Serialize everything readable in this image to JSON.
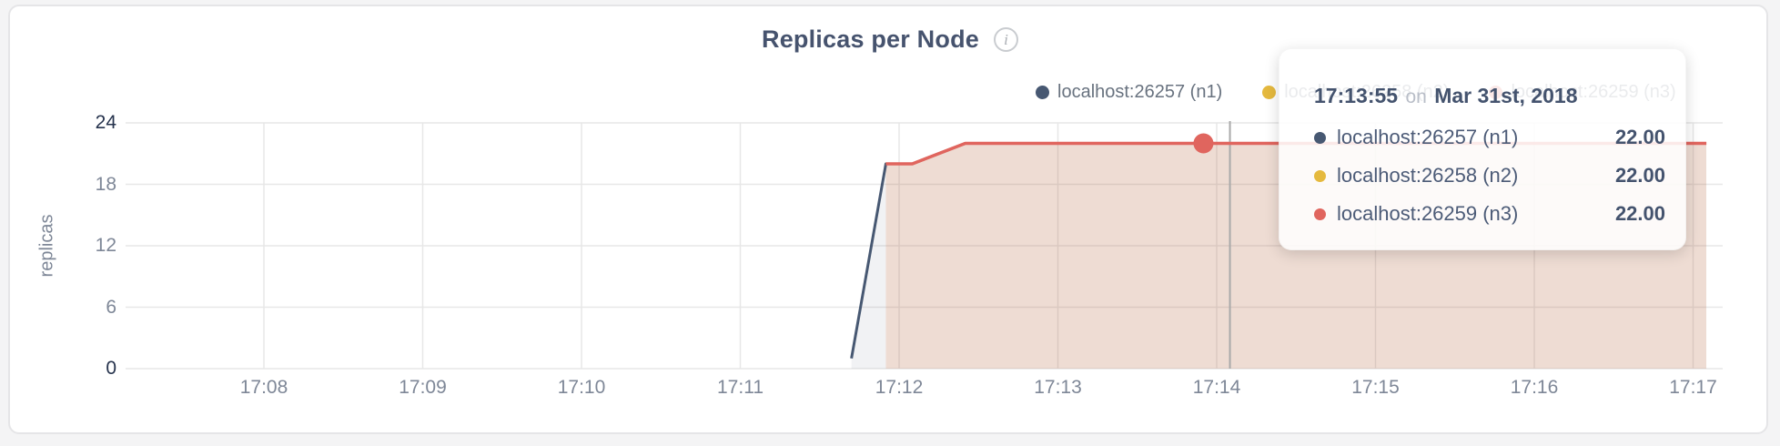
{
  "page": {
    "title": "Replicas per Node",
    "info_icon": "i"
  },
  "colors": {
    "page_background": "#f4f4f5",
    "card_background": "#ffffff",
    "card_border": "#e5e5e7",
    "title_text": "#46536e",
    "axis_tick": "#7e8797",
    "axis_tick_strong": "#26334d",
    "gridline": "#e7e7e7",
    "crosshair": "#a9a9a9",
    "legend_text": "#68727f",
    "tooltip_text": "#4c5b77",
    "tooltip_on_word": "#b9bec8",
    "series_n1": "#475872",
    "series_n2": "#e5b93e",
    "series_n3": "#e0655e"
  },
  "chart_data": {
    "type": "area",
    "title": "Replicas per Node",
    "xlabel": "",
    "ylabel": "replicas",
    "x_ticks": [
      "17:08",
      "17:09",
      "17:10",
      "17:11",
      "17:12",
      "17:13",
      "17:14",
      "17:15",
      "17:16",
      "17:17"
    ],
    "y_ticks": [
      0,
      6,
      12,
      18,
      24
    ],
    "ylim": [
      0,
      24
    ],
    "grid": true,
    "legend_position": "top-right",
    "series": [
      {
        "name": "localhost:26257 (n1)",
        "color": "#475872",
        "fill_opacity": 0.08,
        "points": [
          [
            "17:11:42",
            1
          ],
          [
            "17:11:55",
            20
          ],
          [
            "17:12:05",
            20
          ],
          [
            "17:12:25",
            22
          ],
          [
            "17:17:05",
            22
          ]
        ]
      },
      {
        "name": "localhost:26258 (n2)",
        "color": "#e5b93e",
        "fill_opacity": 0.08,
        "points": [
          [
            "17:11:55",
            20
          ],
          [
            "17:12:05",
            20
          ],
          [
            "17:12:25",
            22
          ],
          [
            "17:17:05",
            22
          ]
        ]
      },
      {
        "name": "localhost:26259 (n3)",
        "color": "#e0655e",
        "fill_opacity": 0.13,
        "points": [
          [
            "17:11:55",
            20
          ],
          [
            "17:12:05",
            20
          ],
          [
            "17:12:25",
            22
          ],
          [
            "17:17:05",
            22
          ]
        ]
      }
    ],
    "highlight_point": {
      "series_index": 2,
      "time": "17:13:55",
      "value": 22
    },
    "crosshair_time": "17:14:05",
    "tooltip": {
      "time": "17:13:55",
      "connector": "on",
      "date": "Mar 31st, 2018",
      "rows": [
        {
          "label": "localhost:26257 (n1)",
          "value": "22.00",
          "color": "#475872"
        },
        {
          "label": "localhost:26258 (n2)",
          "value": "22.00",
          "color": "#e5b93e"
        },
        {
          "label": "localhost:26259 (n3)",
          "value": "22.00",
          "color": "#e0655e"
        }
      ]
    }
  }
}
